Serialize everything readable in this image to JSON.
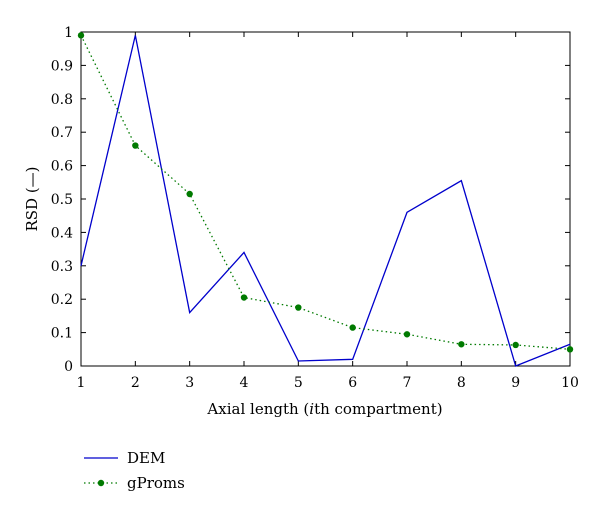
{
  "chart_data": {
    "type": "line",
    "title": "",
    "xlabel_parts": [
      "Axial length (",
      "i",
      "th compartment)"
    ],
    "ylabel": "RSD (—)",
    "xlim": [
      1,
      10
    ],
    "ylim": [
      0,
      1
    ],
    "xticks": [
      1,
      2,
      3,
      4,
      5,
      6,
      7,
      8,
      9,
      10
    ],
    "yticks": [
      0,
      0.1,
      0.2,
      0.3,
      0.4,
      0.5,
      0.6,
      0.7,
      0.8,
      0.9,
      1
    ],
    "x": [
      1,
      2,
      3,
      4,
      5,
      6,
      7,
      8,
      9,
      10
    ],
    "grid": false,
    "legend_position": "bottom-left, below plot",
    "series": [
      {
        "name": "DEM",
        "color": "#0000cc",
        "style": "solid",
        "marker": "none",
        "values": [
          0.3,
          0.99,
          0.16,
          0.34,
          0.015,
          0.02,
          0.46,
          0.555,
          0.0,
          0.065
        ]
      },
      {
        "name": "gProms",
        "color": "#007a00",
        "style": "dotted",
        "marker": "circle",
        "values": [
          0.99,
          0.66,
          0.515,
          0.205,
          0.175,
          0.115,
          0.095,
          0.065,
          0.063,
          0.05
        ]
      }
    ]
  }
}
